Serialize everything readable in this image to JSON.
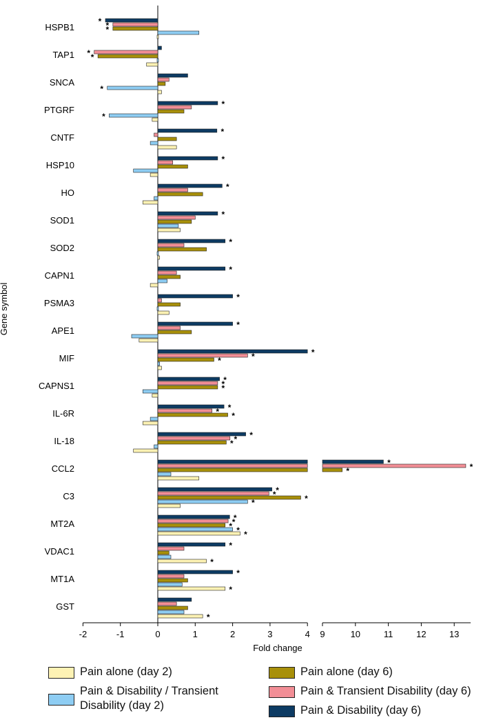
{
  "chart_data": {
    "type": "bar",
    "orientation": "horizontal",
    "xlabel": "Fold change",
    "ylabel": "Gene symbol",
    "axis_break": [
      4,
      9
    ],
    "xlim": [
      -2,
      13.5
    ],
    "x_ticks_left": [
      "-2",
      "-1",
      "0",
      "1",
      "2",
      "3",
      "4"
    ],
    "x_ticks_right": [
      "9",
      "10",
      "11",
      "12",
      "13"
    ],
    "categories": [
      "HSPB1",
      "TAP1",
      "SNCA",
      "PTGRF",
      "CNTF",
      "HSP10",
      "HO",
      "SOD1",
      "SOD2",
      "CAPN1",
      "PSMA3",
      "APE1",
      "MIF",
      "CAPNS1",
      "IL-6R",
      "IL-18",
      "CCL2",
      "C3",
      "MT2A",
      "VDAC1",
      "MT1A",
      "GST"
    ],
    "significance_marker": "*",
    "series": [
      {
        "name": "Pain & Disability (day 6)",
        "color": "#0d3b63",
        "values": [
          -1.4,
          0.1,
          0.8,
          1.6,
          1.58,
          1.6,
          1.72,
          1.6,
          1.8,
          1.8,
          2.0,
          2.0,
          4.0,
          1.65,
          1.77,
          2.35,
          10.85,
          3.05,
          1.92,
          1.8,
          2.0,
          0.9
        ],
        "significant": [
          true,
          false,
          false,
          true,
          true,
          true,
          true,
          true,
          true,
          true,
          true,
          true,
          true,
          true,
          true,
          true,
          true,
          true,
          true,
          true,
          true,
          false
        ]
      },
      {
        "name": "Pain & Transient Disability (day 6)",
        "color": "#f28e96",
        "values": [
          -1.2,
          -1.7,
          0.3,
          0.9,
          -0.1,
          0.4,
          0.8,
          1.0,
          0.7,
          0.5,
          0.1,
          0.6,
          2.4,
          1.6,
          1.45,
          1.93,
          13.35,
          2.97,
          1.88,
          0.7,
          0.7,
          0.5
        ],
        "significant": [
          true,
          true,
          false,
          false,
          false,
          false,
          false,
          false,
          false,
          false,
          false,
          false,
          true,
          true,
          true,
          true,
          true,
          true,
          true,
          false,
          false,
          false
        ]
      },
      {
        "name": "Pain alone (day 6)",
        "color": "#a8900a",
        "values": [
          -1.2,
          -1.6,
          0.2,
          0.7,
          0.5,
          0.8,
          1.2,
          0.9,
          1.3,
          0.6,
          0.6,
          0.9,
          1.5,
          1.6,
          1.87,
          1.83,
          9.6,
          3.82,
          1.8,
          0.3,
          0.8,
          0.8
        ],
        "significant": [
          true,
          true,
          false,
          false,
          false,
          false,
          false,
          false,
          false,
          false,
          false,
          false,
          true,
          true,
          true,
          true,
          true,
          true,
          true,
          false,
          false,
          false
        ]
      },
      {
        "name": "Pain & Disability / Transient Disability (day 2)",
        "color": "#8ecdf3",
        "values": [
          1.1,
          0,
          -1.35,
          -1.3,
          -0.2,
          -0.65,
          -0.1,
          0.55,
          0,
          0.25,
          0,
          -0.7,
          0.05,
          -0.4,
          -0.2,
          -0.1,
          0.35,
          2.4,
          2.0,
          0.35,
          0.65,
          0.7
        ],
        "significant": [
          false,
          false,
          true,
          true,
          false,
          false,
          false,
          false,
          false,
          false,
          false,
          false,
          false,
          false,
          false,
          false,
          false,
          true,
          true,
          false,
          false,
          false
        ]
      },
      {
        "name": "Pain alone (day 2)",
        "color": "#fdf2b4",
        "values": [
          0,
          -0.3,
          0.1,
          -0.15,
          0.5,
          -0.2,
          -0.4,
          0.6,
          0.05,
          -0.2,
          0.3,
          -0.5,
          0.1,
          -0.15,
          -0.4,
          -0.65,
          1.1,
          0.6,
          2.2,
          1.3,
          1.8,
          1.2
        ],
        "significant": [
          false,
          false,
          false,
          false,
          false,
          false,
          false,
          false,
          false,
          false,
          false,
          false,
          false,
          false,
          false,
          false,
          false,
          false,
          true,
          true,
          true,
          true
        ]
      }
    ],
    "legend": [
      {
        "label": "Pain alone (day 2)",
        "color": "#fdf2b4"
      },
      {
        "label": "Pain & Disability / Transient Disability  (day 2)",
        "color": "#8ecdf3"
      },
      {
        "label": "Pain alone (day 6)",
        "color": "#a8900a"
      },
      {
        "label": "Pain & Transient Disability (day 6)",
        "color": "#f28e96"
      },
      {
        "label": "Pain & Disability (day 6)",
        "color": "#0d3b63"
      }
    ]
  }
}
